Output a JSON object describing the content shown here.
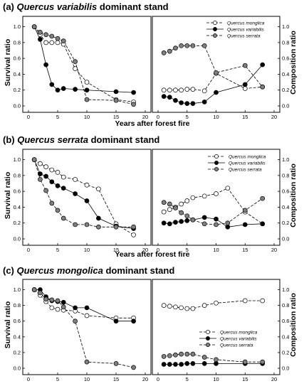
{
  "figure": {
    "panels": [
      {
        "prefix": "(a) ",
        "species": "Quercus variabilis",
        "suffix": " dominant stand",
        "ylabel_left": "Survival ratio",
        "ylabel_right": "Composition ratio",
        "xlabel": "Years after forest fire"
      },
      {
        "prefix": "(b) ",
        "species": "Quercus serrata",
        "suffix": " dominant stand",
        "ylabel_left": "Survival ratio",
        "ylabel_right": "Composition ratio",
        "xlabel": "Years after forest fire"
      },
      {
        "prefix": "(c) ",
        "species": "Quercus mongolica",
        "suffix": " dominant stand",
        "ylabel_left": "Survival ratio",
        "ylabel_right": "Composition ratio",
        "xlabel": ""
      }
    ],
    "legend_labels": [
      [
        "Quercus monglica",
        "Quercus variabilis",
        "Quercus serrata"
      ],
      [
        "Quercus monglica",
        "Quercus variabilis",
        "Quercus serrata"
      ],
      [
        "Quercus monglica",
        "Quercus variabilis",
        "Quercus serrata"
      ]
    ],
    "styles": {
      "mongolica": {
        "fill": "#ffffff",
        "dash": true
      },
      "variabilis": {
        "fill": "#000000",
        "dash": false
      },
      "serrata": {
        "fill": "#808080",
        "dash": true
      }
    }
  },
  "chart_data": [
    {
      "type": "line",
      "panel": "a-survival",
      "title": "(a) Quercus variabilis dominant stand",
      "xlabel": "Years after forest fire",
      "ylabel": "Survival ratio",
      "xlim": [
        0,
        20
      ],
      "ylim": [
        0,
        1.05
      ],
      "xticks": [
        0,
        5,
        10,
        15,
        20
      ],
      "yticks": [
        0.0,
        0.2,
        0.4,
        0.6,
        0.8,
        1.0
      ],
      "series": [
        {
          "key": "mongolica",
          "x": [
            1,
            2,
            3,
            4,
            5,
            6,
            8,
            10,
            15,
            18
          ],
          "y": [
            1.0,
            0.9,
            0.8,
            0.8,
            0.8,
            0.78,
            0.47,
            0.3,
            0.08,
            0.05
          ]
        },
        {
          "key": "variabilis",
          "x": [
            1,
            2,
            3,
            4,
            5,
            6,
            8,
            10,
            15,
            18
          ],
          "y": [
            1.0,
            0.84,
            0.52,
            0.27,
            0.2,
            0.22,
            0.21,
            0.2,
            0.18,
            0.17
          ]
        },
        {
          "key": "serrata",
          "x": [
            1,
            2,
            3,
            4,
            5,
            6,
            8,
            10,
            15,
            18
          ],
          "y": [
            1.0,
            0.93,
            0.9,
            0.88,
            0.85,
            0.82,
            0.56,
            0.08,
            0.07,
            0.02
          ]
        }
      ]
    },
    {
      "type": "line",
      "panel": "a-composition",
      "xlabel": "",
      "ylabel": "Composition ratio",
      "xlim": [
        0,
        20
      ],
      "ylim": [
        0,
        1.05
      ],
      "xticks": [
        0,
        5,
        10,
        15,
        20
      ],
      "yticks": [
        0.0,
        0.2,
        0.4,
        0.6,
        0.8,
        1.0
      ],
      "legend": "top-right",
      "series": [
        {
          "name": "Quercus monglica",
          "key": "mongolica",
          "x": [
            1,
            2,
            3,
            4,
            5,
            6,
            8,
            10,
            15,
            18
          ],
          "y": [
            0.2,
            0.2,
            0.2,
            0.2,
            0.21,
            0.21,
            0.19,
            0.41,
            0.22,
            0.24
          ]
        },
        {
          "name": "Quercus variabilis",
          "key": "variabilis",
          "x": [
            1,
            2,
            3,
            4,
            5,
            6,
            8,
            10,
            15,
            18
          ],
          "y": [
            0.12,
            0.11,
            0.07,
            0.04,
            0.03,
            0.03,
            0.05,
            0.17,
            0.27,
            0.52
          ]
        },
        {
          "name": "Quercus serrata",
          "key": "serrata",
          "x": [
            1,
            2,
            3,
            4,
            5,
            6,
            8,
            10,
            15,
            18
          ],
          "y": [
            0.67,
            0.69,
            0.73,
            0.76,
            0.76,
            0.76,
            0.76,
            0.42,
            0.51,
            0.24
          ]
        }
      ]
    },
    {
      "type": "line",
      "panel": "b-survival",
      "title": "(b) Quercus serrata dominant stand",
      "xlabel": "Years after forest fire",
      "ylabel": "Survival ratio",
      "xlim": [
        0,
        20
      ],
      "ylim": [
        0,
        1.05
      ],
      "xticks": [
        0,
        5,
        10,
        15,
        20
      ],
      "yticks": [
        0.0,
        0.2,
        0.4,
        0.6,
        0.8,
        1.0
      ],
      "series": [
        {
          "key": "mongolica",
          "x": [
            1,
            2,
            3,
            4,
            5,
            6,
            8,
            10,
            12,
            15,
            18
          ],
          "y": [
            1.0,
            0.95,
            0.91,
            0.87,
            0.84,
            0.78,
            0.75,
            0.68,
            0.63,
            0.19,
            0.05
          ]
        },
        {
          "key": "variabilis",
          "x": [
            1,
            2,
            3,
            4,
            5,
            6,
            8,
            10,
            12,
            15,
            18
          ],
          "y": [
            1.0,
            0.82,
            0.79,
            0.72,
            0.67,
            0.64,
            0.57,
            0.48,
            0.26,
            0.16,
            0.13
          ]
        },
        {
          "key": "serrata",
          "x": [
            1,
            2,
            3,
            4,
            5,
            6,
            8,
            10,
            12,
            15,
            18
          ],
          "y": [
            1.0,
            0.75,
            0.61,
            0.45,
            0.36,
            0.26,
            0.18,
            0.18,
            0.15,
            0.15,
            0.15
          ]
        }
      ]
    },
    {
      "type": "line",
      "panel": "b-composition",
      "xlabel": "",
      "ylabel": "Composition ratio",
      "xlim": [
        0,
        20
      ],
      "ylim": [
        0,
        1.05
      ],
      "xticks": [
        0,
        5,
        10,
        15,
        20
      ],
      "yticks": [
        0.0,
        0.2,
        0.4,
        0.6,
        0.8,
        1.0
      ],
      "legend": "top-right",
      "series": [
        {
          "name": "Quercus monglica",
          "key": "mongolica",
          "x": [
            1,
            2,
            3,
            4,
            5,
            6,
            8,
            10,
            12,
            15,
            18
          ],
          "y": [
            0.34,
            0.37,
            0.4,
            0.44,
            0.48,
            0.52,
            0.54,
            0.57,
            0.64,
            0.34,
            0.19
          ]
        },
        {
          "name": "Quercus variabilis",
          "key": "variabilis",
          "x": [
            1,
            2,
            3,
            4,
            5,
            6,
            8,
            10,
            12,
            15,
            18
          ],
          "y": [
            0.2,
            0.19,
            0.21,
            0.22,
            0.23,
            0.24,
            0.27,
            0.25,
            0.15,
            0.18,
            0.19
          ]
        },
        {
          "name": "Quercus serrata",
          "key": "serrata",
          "x": [
            1,
            2,
            3,
            4,
            5,
            6,
            8,
            10,
            12,
            15,
            18
          ],
          "y": [
            0.46,
            0.44,
            0.39,
            0.33,
            0.29,
            0.24,
            0.19,
            0.18,
            0.2,
            0.36,
            0.51
          ]
        }
      ]
    },
    {
      "type": "line",
      "panel": "c-survival",
      "title": "(c) Quercus mongolica dominant stand",
      "xlabel": "",
      "ylabel": "Survival ratio",
      "xlim": [
        0,
        20
      ],
      "ylim": [
        0,
        1.05
      ],
      "xticks": [
        0,
        5,
        10,
        15,
        20
      ],
      "yticks": [
        0.0,
        0.2,
        0.4,
        0.6,
        0.8,
        1.0
      ],
      "series": [
        {
          "key": "mongolica",
          "x": [
            1,
            2,
            3,
            4,
            5,
            6,
            8,
            10,
            15,
            18
          ],
          "y": [
            1.0,
            0.93,
            0.85,
            0.77,
            0.75,
            0.74,
            0.73,
            0.67,
            0.64,
            0.64
          ]
        },
        {
          "key": "variabilis",
          "x": [
            1,
            2,
            3,
            4,
            5,
            6,
            8,
            10,
            15,
            18
          ],
          "y": [
            1.0,
            1.0,
            0.91,
            0.86,
            0.85,
            0.84,
            0.77,
            0.77,
            0.6,
            0.6
          ]
        },
        {
          "key": "serrata",
          "x": [
            1,
            2,
            3,
            4,
            5,
            6,
            8,
            10,
            15,
            18
          ],
          "y": [
            1.0,
            0.96,
            0.88,
            0.87,
            0.86,
            0.78,
            0.6,
            0.08,
            0.06,
            0.01
          ]
        }
      ]
    },
    {
      "type": "line",
      "panel": "c-composition",
      "xlabel": "",
      "ylabel": "Composition ratio",
      "xlim": [
        0,
        20
      ],
      "ylim": [
        0,
        1.05
      ],
      "xticks": [
        0,
        5,
        10,
        15,
        20
      ],
      "yticks": [
        0.0,
        0.2,
        0.4,
        0.6,
        0.8,
        1.0
      ],
      "legend": "center-right",
      "series": [
        {
          "name": "Quercus monglica",
          "key": "mongolica",
          "x": [
            1,
            2,
            3,
            4,
            5,
            6,
            8,
            10,
            15,
            18
          ],
          "y": [
            0.8,
            0.79,
            0.78,
            0.77,
            0.76,
            0.76,
            0.8,
            0.83,
            0.86,
            0.86
          ]
        },
        {
          "name": "Quercus variabilis",
          "key": "variabilis",
          "x": [
            1,
            2,
            3,
            4,
            5,
            6,
            8,
            10,
            15,
            18
          ],
          "y": [
            0.05,
            0.05,
            0.05,
            0.05,
            0.06,
            0.06,
            0.06,
            0.06,
            0.06,
            0.06
          ]
        },
        {
          "name": "Quercus serrata",
          "key": "serrata",
          "x": [
            1,
            2,
            3,
            4,
            5,
            6,
            8,
            10,
            15,
            18
          ],
          "y": [
            0.15,
            0.16,
            0.17,
            0.18,
            0.18,
            0.18,
            0.14,
            0.11,
            0.08,
            0.08
          ]
        }
      ]
    }
  ]
}
